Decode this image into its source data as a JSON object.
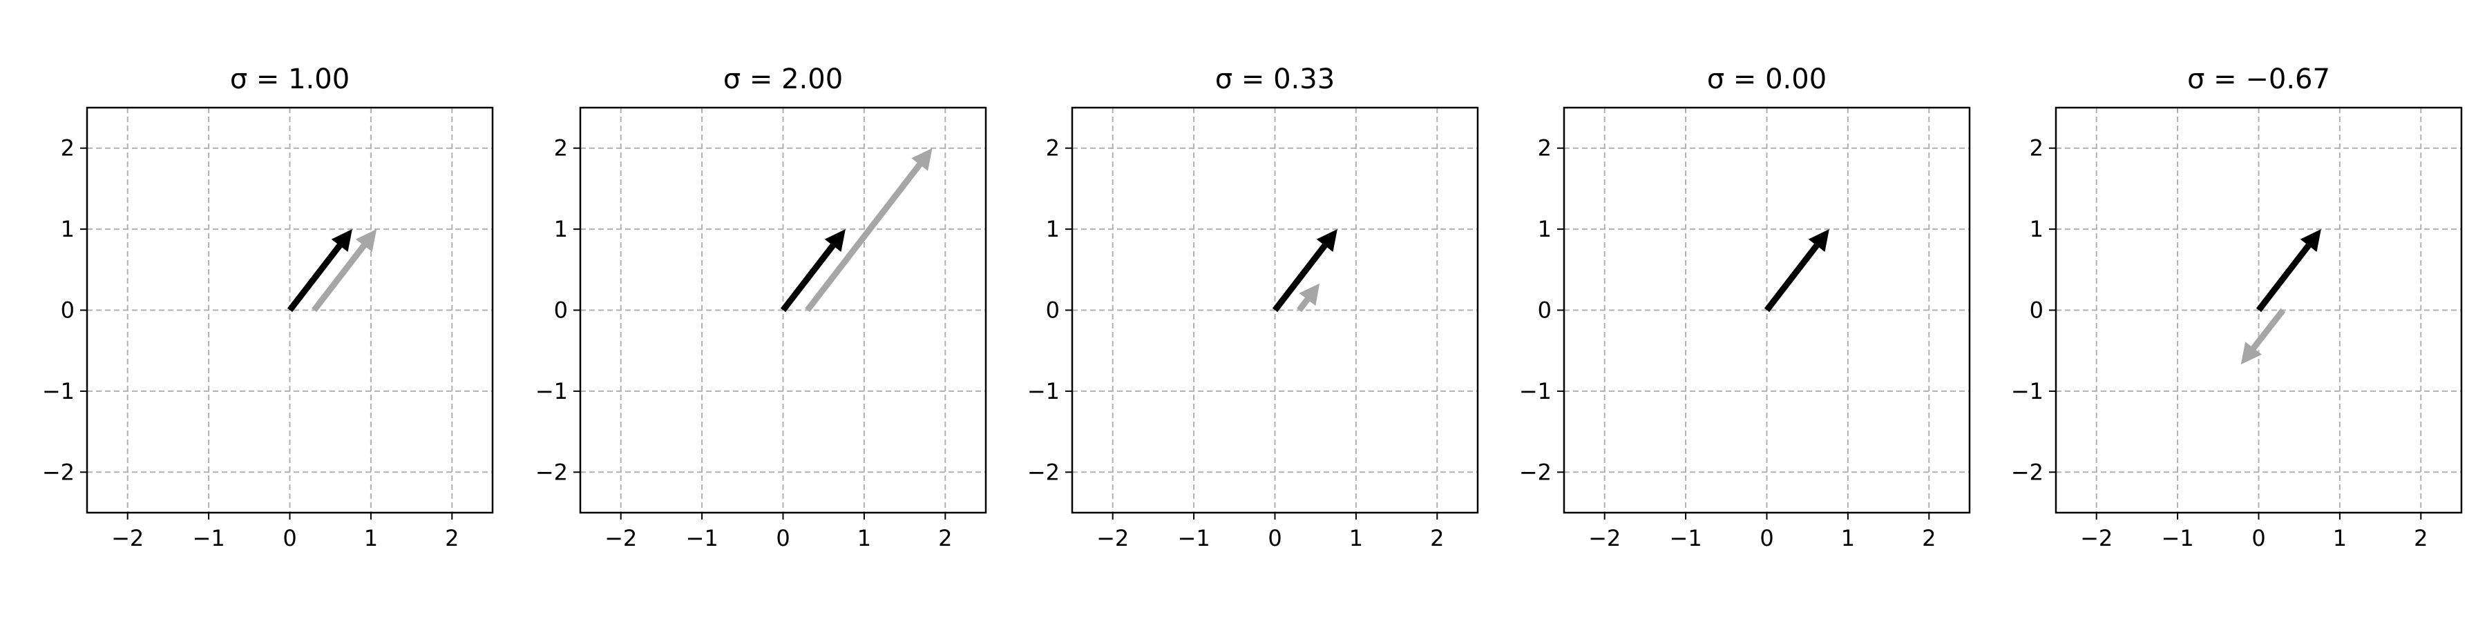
{
  "chart_data": [
    {
      "type": "vector",
      "title": "σ = 1.00",
      "xlim": [
        -2.5,
        2.5
      ],
      "ylim": [
        -2.5,
        2.5
      ],
      "xticks": [
        -2,
        -1,
        0,
        1,
        2
      ],
      "yticks": [
        -2,
        -1,
        0,
        1,
        2
      ],
      "grid": true,
      "series": [
        {
          "color": "#000000",
          "origin": [
            0,
            0
          ],
          "vector": [
            0.77,
            1.0
          ]
        },
        {
          "color": "#a6a6a6",
          "origin": [
            0.3,
            0
          ],
          "vector": [
            0.77,
            1.0
          ]
        }
      ]
    },
    {
      "type": "vector",
      "title": "σ = 2.00",
      "xlim": [
        -2.5,
        2.5
      ],
      "ylim": [
        -2.5,
        2.5
      ],
      "xticks": [
        -2,
        -1,
        0,
        1,
        2
      ],
      "yticks": [
        -2,
        -1,
        0,
        1,
        2
      ],
      "grid": true,
      "series": [
        {
          "color": "#000000",
          "origin": [
            0,
            0
          ],
          "vector": [
            0.77,
            1.0
          ]
        },
        {
          "color": "#a6a6a6",
          "origin": [
            0.3,
            0
          ],
          "vector": [
            1.54,
            2.0
          ]
        }
      ]
    },
    {
      "type": "vector",
      "title": "σ = 0.33",
      "xlim": [
        -2.5,
        2.5
      ],
      "ylim": [
        -2.5,
        2.5
      ],
      "xticks": [
        -2,
        -1,
        0,
        1,
        2
      ],
      "yticks": [
        -2,
        -1,
        0,
        1,
        2
      ],
      "grid": true,
      "series": [
        {
          "color": "#000000",
          "origin": [
            0,
            0
          ],
          "vector": [
            0.77,
            1.0
          ]
        },
        {
          "color": "#a6a6a6",
          "origin": [
            0.3,
            0
          ],
          "vector": [
            0.25,
            0.33
          ]
        }
      ]
    },
    {
      "type": "vector",
      "title": "σ = 0.00",
      "xlim": [
        -2.5,
        2.5
      ],
      "ylim": [
        -2.5,
        2.5
      ],
      "xticks": [
        -2,
        -1,
        0,
        1,
        2
      ],
      "yticks": [
        -2,
        -1,
        0,
        1,
        2
      ],
      "grid": true,
      "series": [
        {
          "color": "#000000",
          "origin": [
            0,
            0
          ],
          "vector": [
            0.77,
            1.0
          ]
        },
        {
          "color": "#a6a6a6",
          "origin": [
            0.3,
            0
          ],
          "vector": [
            0,
            0
          ]
        }
      ]
    },
    {
      "type": "vector",
      "title": "σ = −0.67",
      "xlim": [
        -2.5,
        2.5
      ],
      "ylim": [
        -2.5,
        2.5
      ],
      "xticks": [
        -2,
        -1,
        0,
        1,
        2
      ],
      "yticks": [
        -2,
        -1,
        0,
        1,
        2
      ],
      "grid": true,
      "series": [
        {
          "color": "#000000",
          "origin": [
            0,
            0
          ],
          "vector": [
            0.77,
            1.0
          ]
        },
        {
          "color": "#a6a6a6",
          "origin": [
            0.3,
            0
          ],
          "vector": [
            -0.52,
            -0.67
          ]
        }
      ]
    }
  ]
}
